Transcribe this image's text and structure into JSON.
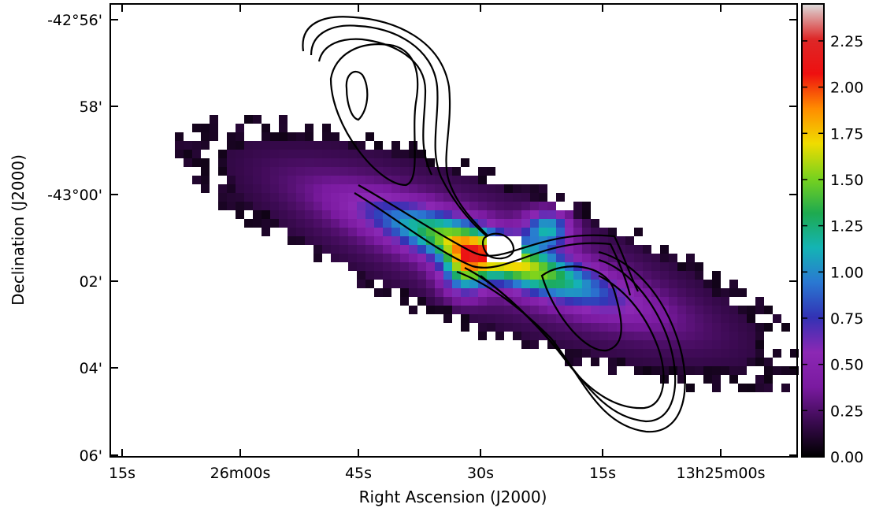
{
  "chart_data": {
    "type": "heatmap",
    "title": "",
    "xlabel": "Right Ascension (J2000)",
    "ylabel": "Declination (J2000)",
    "x_tick_labels": [
      "15s",
      "26m00s",
      "45s",
      "30s",
      "15s",
      "13h25m00s"
    ],
    "y_tick_labels": [
      "-42°56'",
      "58'",
      "-43°00'",
      "02'",
      "04'",
      "06'"
    ],
    "colorbar": {
      "range": [
        0.0,
        2.45
      ],
      "ticks": [
        0.0,
        0.25,
        0.5,
        0.75,
        1.0,
        1.25,
        1.5,
        1.75,
        2.0,
        2.25
      ],
      "tick_labels": [
        "0.00",
        "0.25",
        "0.50",
        "0.75",
        "1.00",
        "1.25",
        "1.50",
        "1.75",
        "2.00",
        "2.25"
      ],
      "colormap": [
        "#000000",
        "#3a0a50",
        "#7a1aa0",
        "#8c28b4",
        "#3232b4",
        "#2a78d2",
        "#14b4b4",
        "#1eaa50",
        "#78d21e",
        "#f0dc00",
        "#ff8c00",
        "#ee1010",
        "#dd2828",
        "#dcdcdc"
      ]
    },
    "contours": "black radio contours over heatmap",
    "grid": false
  }
}
